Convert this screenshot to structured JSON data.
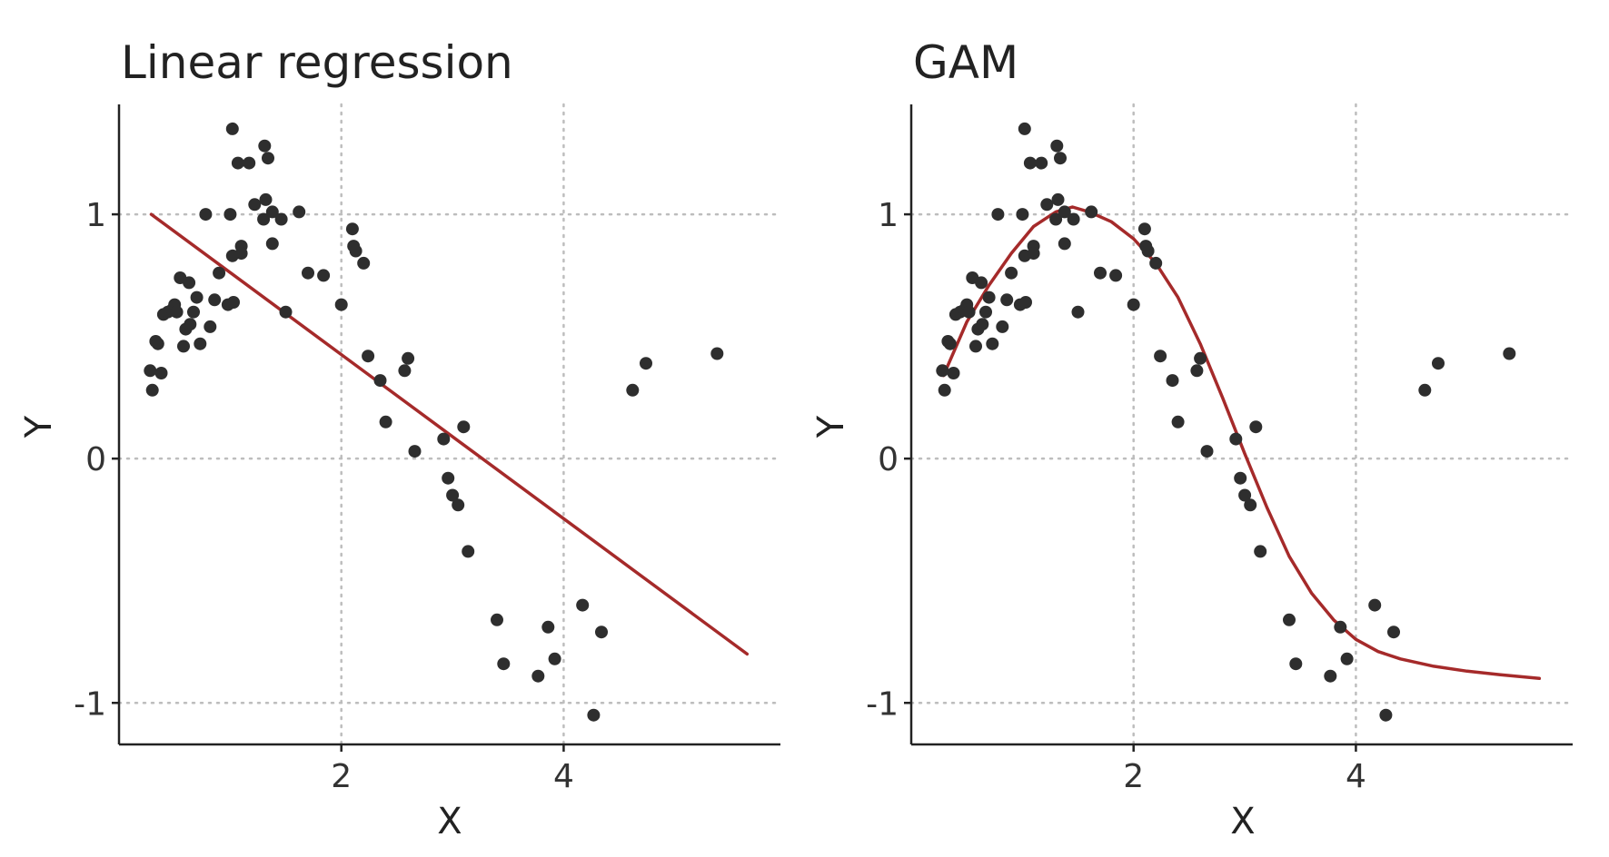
{
  "colors": {
    "points": "#2e2e2e",
    "fit": "#a52a2a",
    "grid": "#bdbdbd",
    "axis": "#222222"
  },
  "chart_data": [
    {
      "type": "scatter",
      "title": "Linear regression",
      "xlabel": "X",
      "ylabel": "Y",
      "xlim": [
        0.0,
        5.95
      ],
      "ylim": [
        -1.17,
        1.45
      ],
      "xticks": [
        2,
        4
      ],
      "xtick_labels": [
        "2",
        "4"
      ],
      "yticks": [
        -1,
        0,
        1
      ],
      "ytick_labels": [
        "-1",
        "0",
        "1"
      ],
      "grid": true,
      "fit_type": "linear",
      "fit": {
        "x": [
          0.29,
          5.65
        ],
        "y": [
          1.0,
          -0.8
        ]
      },
      "points": {
        "x": [
          0.28,
          0.3,
          0.33,
          0.35,
          0.38,
          0.4,
          0.44,
          0.48,
          0.5,
          0.52,
          0.55,
          0.58,
          0.6,
          0.63,
          0.64,
          0.67,
          0.7,
          0.73,
          0.78,
          0.82,
          0.86,
          0.9,
          0.98,
          1.0,
          1.02,
          1.02,
          1.03,
          1.07,
          1.1,
          1.1,
          1.17,
          1.22,
          1.3,
          1.31,
          1.32,
          1.34,
          1.38,
          1.38,
          1.46,
          1.5,
          1.62,
          1.7,
          1.84,
          2.0,
          2.1,
          2.11,
          2.13,
          2.2,
          2.24,
          2.35,
          2.4,
          2.57,
          2.6,
          2.66,
          2.92,
          2.96,
          3.0,
          3.05,
          3.1,
          3.14,
          3.4,
          3.46,
          3.77,
          3.86,
          3.92,
          4.17,
          4.27,
          4.34,
          4.62,
          4.74,
          5.38
        ],
        "y": [
          0.36,
          0.28,
          0.48,
          0.47,
          0.35,
          0.59,
          0.6,
          0.61,
          0.63,
          0.6,
          0.74,
          0.46,
          0.53,
          0.72,
          0.55,
          0.6,
          0.66,
          0.47,
          1.0,
          0.54,
          0.65,
          0.76,
          0.63,
          1.0,
          0.83,
          1.35,
          0.64,
          1.21,
          0.87,
          0.84,
          1.21,
          1.04,
          0.98,
          1.28,
          1.06,
          1.23,
          0.88,
          1.01,
          0.98,
          0.6,
          1.01,
          0.76,
          0.75,
          0.63,
          0.94,
          0.87,
          0.85,
          0.8,
          0.42,
          0.32,
          0.15,
          0.36,
          0.41,
          0.03,
          0.08,
          -0.08,
          -0.15,
          -0.19,
          0.13,
          -0.38,
          -0.66,
          -0.84,
          -0.89,
          -0.69,
          -0.82,
          -0.6,
          -1.05,
          -0.71,
          0.28,
          0.39,
          0.43
        ]
      }
    },
    {
      "type": "scatter",
      "title": "GAM",
      "xlabel": "X",
      "ylabel": "Y",
      "xlim": [
        0.0,
        5.95
      ],
      "ylim": [
        -1.17,
        1.45
      ],
      "xticks": [
        2,
        4
      ],
      "xtick_labels": [
        "2",
        "4"
      ],
      "yticks": [
        -1,
        0,
        1
      ],
      "ytick_labels": [
        "-1",
        "0",
        "1"
      ],
      "grid": true,
      "fit_type": "smooth",
      "fit": {
        "x": [
          0.29,
          0.5,
          0.7,
          0.9,
          1.1,
          1.3,
          1.45,
          1.6,
          1.8,
          2.0,
          2.2,
          2.4,
          2.6,
          2.8,
          3.0,
          3.2,
          3.4,
          3.6,
          3.8,
          4.0,
          4.2,
          4.4,
          4.7,
          5.0,
          5.3,
          5.65
        ],
        "y": [
          0.34,
          0.56,
          0.71,
          0.84,
          0.95,
          1.01,
          1.03,
          1.01,
          0.97,
          0.9,
          0.8,
          0.66,
          0.47,
          0.25,
          0.02,
          -0.2,
          -0.4,
          -0.55,
          -0.66,
          -0.74,
          -0.79,
          -0.82,
          -0.85,
          -0.87,
          -0.885,
          -0.9
        ]
      },
      "points": {
        "x": [
          0.28,
          0.3,
          0.33,
          0.35,
          0.38,
          0.4,
          0.44,
          0.48,
          0.5,
          0.52,
          0.55,
          0.58,
          0.6,
          0.63,
          0.64,
          0.67,
          0.7,
          0.73,
          0.78,
          0.82,
          0.86,
          0.9,
          0.98,
          1.0,
          1.02,
          1.02,
          1.03,
          1.07,
          1.1,
          1.1,
          1.17,
          1.22,
          1.3,
          1.31,
          1.32,
          1.34,
          1.38,
          1.38,
          1.46,
          1.5,
          1.62,
          1.7,
          1.84,
          2.0,
          2.1,
          2.11,
          2.13,
          2.2,
          2.24,
          2.35,
          2.4,
          2.57,
          2.6,
          2.66,
          2.92,
          2.96,
          3.0,
          3.05,
          3.1,
          3.14,
          3.4,
          3.46,
          3.77,
          3.86,
          3.92,
          4.17,
          4.27,
          4.34,
          4.62,
          4.74,
          5.38
        ],
        "y": [
          0.36,
          0.28,
          0.48,
          0.47,
          0.35,
          0.59,
          0.6,
          0.61,
          0.63,
          0.6,
          0.74,
          0.46,
          0.53,
          0.72,
          0.55,
          0.6,
          0.66,
          0.47,
          1.0,
          0.54,
          0.65,
          0.76,
          0.63,
          1.0,
          0.83,
          1.35,
          0.64,
          1.21,
          0.87,
          0.84,
          1.21,
          1.04,
          0.98,
          1.28,
          1.06,
          1.23,
          0.88,
          1.01,
          0.98,
          0.6,
          1.01,
          0.76,
          0.75,
          0.63,
          0.94,
          0.87,
          0.85,
          0.8,
          0.42,
          0.32,
          0.15,
          0.36,
          0.41,
          0.03,
          0.08,
          -0.08,
          -0.15,
          -0.19,
          0.13,
          -0.38,
          -0.66,
          -0.84,
          -0.89,
          -0.69,
          -0.82,
          -0.6,
          -1.05,
          -0.71,
          0.28,
          0.39,
          0.43
        ]
      }
    }
  ]
}
